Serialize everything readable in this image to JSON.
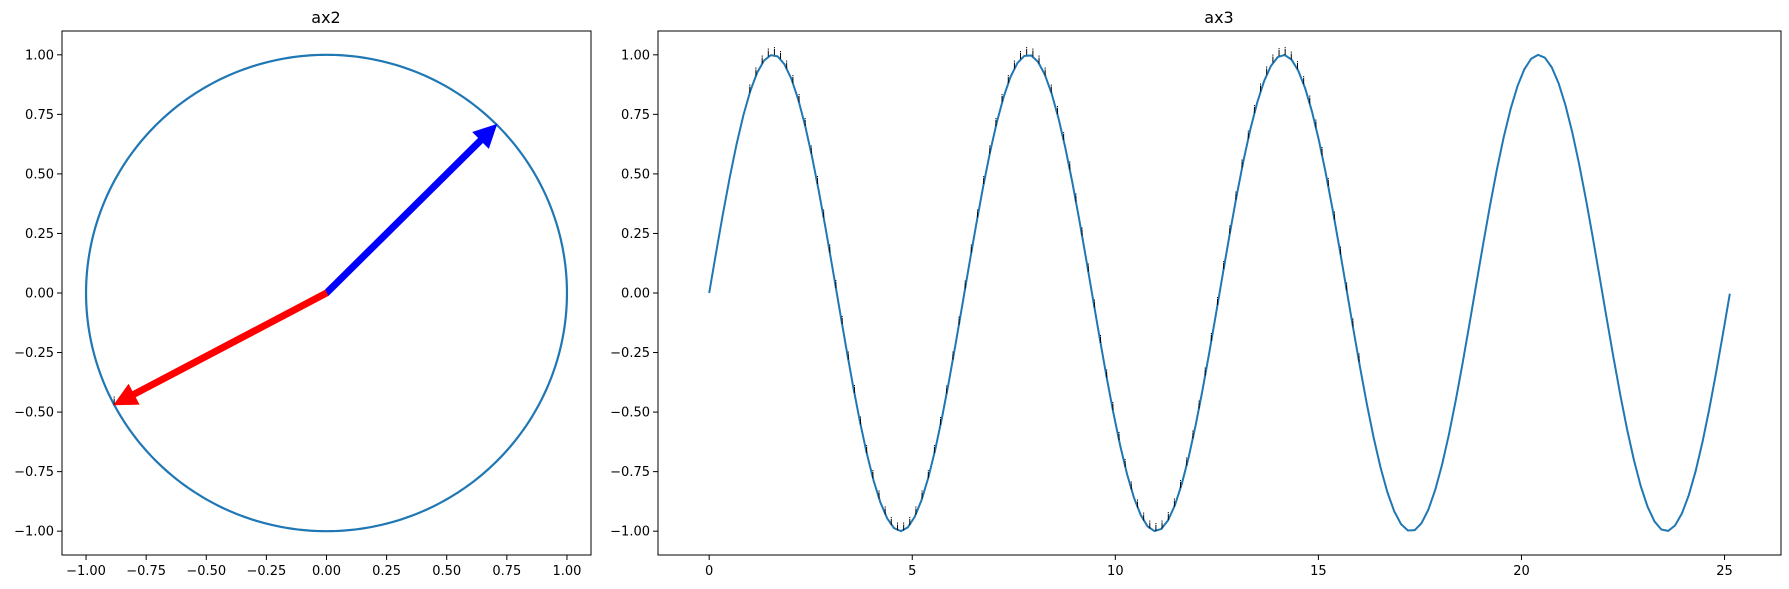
{
  "chart_data": [
    {
      "type": "line",
      "title": "ax2",
      "xlabel": "",
      "ylabel": "",
      "xlim": [
        -1.1,
        1.1
      ],
      "ylim": [
        -1.1,
        1.1
      ],
      "xticks": [
        -1.0,
        -0.75,
        -0.5,
        -0.25,
        0.0,
        0.25,
        0.5,
        0.75,
        1.0
      ],
      "yticks": [
        -1.0,
        -0.75,
        -0.5,
        -0.25,
        0.0,
        0.25,
        0.5,
        0.75,
        1.0
      ],
      "xtick_labels": [
        "−1.00",
        "−0.75",
        "−0.50",
        "−0.25",
        "0.00",
        "0.25",
        "0.50",
        "0.75",
        "1.00"
      ],
      "ytick_labels": [
        "−1.00",
        "−0.75",
        "−0.50",
        "−0.25",
        "0.00",
        "0.25",
        "0.50",
        "0.75",
        "1.00"
      ],
      "grid": false,
      "series": [
        {
          "kind": "circle",
          "center": [
            0,
            0
          ],
          "radius": 1.0,
          "color": "#1f77b4"
        }
      ],
      "arrows": [
        {
          "from": [
            0,
            0
          ],
          "to": [
            0.707,
            0.707
          ],
          "color": "#0000ff"
        },
        {
          "from": [
            0,
            0
          ],
          "to": [
            -0.883,
            -0.469
          ],
          "color": "#ff0000"
        }
      ],
      "annotations": [
        {
          "text": "i",
          "x": -0.883,
          "y": -0.469
        }
      ]
    },
    {
      "type": "line",
      "title": "ax3",
      "xlabel": "",
      "ylabel": "",
      "xlim": [
        -1.26,
        26.39
      ],
      "ylim": [
        -1.1,
        1.1
      ],
      "xticks": [
        0,
        5,
        10,
        15,
        20,
        25
      ],
      "yticks": [
        -1.0,
        -0.75,
        -0.5,
        -0.25,
        0.0,
        0.25,
        0.5,
        0.75,
        1.0
      ],
      "xtick_labels": [
        "0",
        "5",
        "10",
        "15",
        "20",
        "25"
      ],
      "ytick_labels": [
        "−1.00",
        "−0.75",
        "−0.50",
        "−0.25",
        "0.00",
        "0.25",
        "0.50",
        "0.75",
        "1.00"
      ],
      "grid": false,
      "series": [
        {
          "function": "sin(x)",
          "x_range": [
            0,
            25.13
          ],
          "points": 150,
          "color": "#1f77b4"
        }
      ],
      "annotation": {
        "text": "i",
        "along": "sin(x)",
        "x_range": [
          1.0,
          16.0
        ],
        "count": 100
      }
    }
  ]
}
